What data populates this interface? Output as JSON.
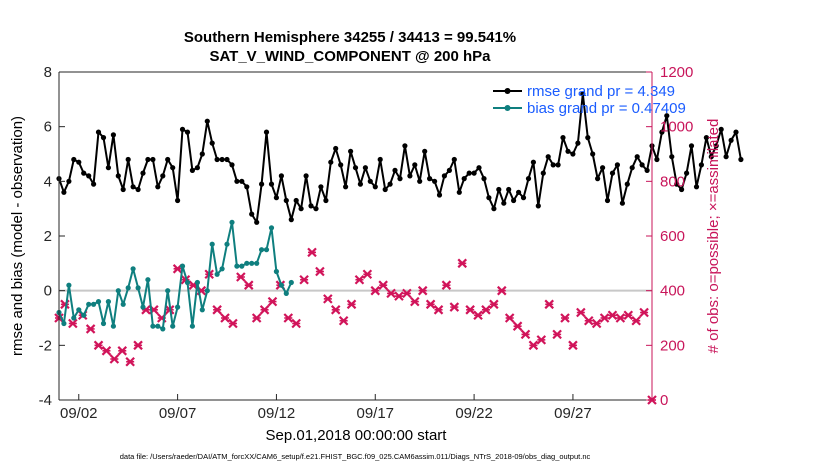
{
  "chart_data": {
    "type": "line",
    "title": "Southern Hemisphere 34255 / 34413 = 99.541%",
    "subtitle": "SAT_V_WIND_COMPONENT @ 200 hPa",
    "xlabel": "Sep.01,2018 00:00:00 start",
    "ylabel": "rmse and bias (model - observation)",
    "ylabel_right": "# of obs: o=possible; ×=assimilated",
    "x_tick_labels": [
      "09/02",
      "09/07",
      "09/12",
      "09/17",
      "09/22",
      "09/27"
    ],
    "x_tick_days": [
      2,
      7,
      12,
      17,
      22,
      27
    ],
    "xlim": [
      1,
      31
    ],
    "ylim": [
      -4,
      8
    ],
    "yticks": [
      -4,
      -2,
      0,
      2,
      4,
      6,
      8
    ],
    "ylim_right": [
      0,
      1200
    ],
    "yticks_right": [
      0,
      200,
      400,
      600,
      800,
      1000,
      1200
    ],
    "footer": "data file: /Users/raeder/DAI/ATM_forcXX/CAM6_setup/f.e21.FHIST_BGC.f09_025.CAM6assim.011/Diags_NTrS_2018-09/obs_diag_output.nc",
    "colors": {
      "rmse": "#000000",
      "bias": "#0f7f7f",
      "obs": "#d1145a",
      "zero_line": "#c8c8c8",
      "legend_text": "#1a5cff",
      "right_axis": "#c8155a"
    },
    "series": [
      {
        "name": "rmse grand pr = 4.349",
        "x_start": 1.0,
        "x_step": 0.25,
        "values": [
          4.1,
          3.6,
          4.0,
          4.8,
          4.7,
          4.3,
          4.2,
          3.9,
          5.8,
          5.6,
          4.5,
          5.7,
          4.2,
          3.7,
          4.8,
          3.8,
          3.7,
          4.3,
          4.8,
          4.8,
          3.8,
          4.2,
          4.8,
          4.5,
          3.3,
          5.9,
          5.8,
          4.4,
          4.5,
          5.0,
          6.2,
          5.4,
          4.8,
          4.8,
          4.8,
          4.6,
          4.0,
          4.0,
          3.8,
          2.8,
          2.5,
          3.9,
          5.8,
          3.9,
          3.4,
          4.2,
          3.3,
          2.6,
          3.3,
          3.0,
          4.2,
          3.1,
          3.0,
          3.8,
          3.3,
          4.7,
          5.2,
          4.6,
          3.8,
          5.1,
          4.5,
          3.9,
          4.5,
          4.0,
          3.8,
          4.8,
          3.7,
          3.9,
          4.4,
          4.1,
          5.3,
          4.2,
          4.6,
          4.0,
          5.1,
          4.1,
          4.0,
          3.5,
          4.2,
          4.4,
          4.8,
          3.6,
          4.1,
          4.3,
          4.3,
          4.5,
          4.1,
          3.4,
          3.0,
          3.7,
          3.2,
          3.7,
          3.3,
          3.6,
          3.4,
          4.1,
          4.7,
          3.1,
          4.3,
          4.9,
          4.6,
          4.6,
          5.6,
          5.1,
          5.0,
          5.4,
          7.2,
          5.6,
          5.0,
          4.1,
          4.5,
          3.3,
          4.3,
          4.6,
          3.2,
          3.9,
          4.5,
          4.9,
          4.6,
          4.4,
          5.3,
          4.8,
          5.8,
          6.4,
          4.9,
          3.9,
          3.7,
          4.3,
          5.3,
          3.8,
          4.6,
          5.6,
          4.9,
          5.3,
          5.9,
          4.9,
          5.5,
          5.8,
          4.8
        ],
        "legend_label": "rmse grand pr = 4.349"
      },
      {
        "name": "bias grand pr = 0.47409",
        "x_start": 1.0,
        "x_step": 0.25,
        "values": [
          -0.8,
          -1.2,
          0.2,
          -1.0,
          -0.7,
          -0.9,
          -0.5,
          -0.5,
          -0.4,
          -1.2,
          -0.4,
          -1.3,
          0.0,
          -0.5,
          0.1,
          0.8,
          0.1,
          -0.6,
          0.4,
          -1.3,
          -1.3,
          -1.4,
          0.0,
          -1.3,
          -0.6,
          0.9,
          0.3,
          -1.3,
          0.3,
          -0.7,
          0.0,
          1.7,
          0.6,
          0.8,
          1.7,
          2.5,
          0.9,
          0.9,
          1.0,
          1.0,
          1.0,
          1.5,
          1.5,
          2.3,
          0.7,
          0.2,
          -0.1,
          0.3
        ],
        "legend_label": "bias grand pr = 0.47409"
      }
    ],
    "bias_note": "bias series is listed for the visible part of the curve"
  },
  "legend": {
    "rmse_label": "rmse grand pr = 4.349",
    "bias_label": "bias grand pr = 0.47409"
  }
}
